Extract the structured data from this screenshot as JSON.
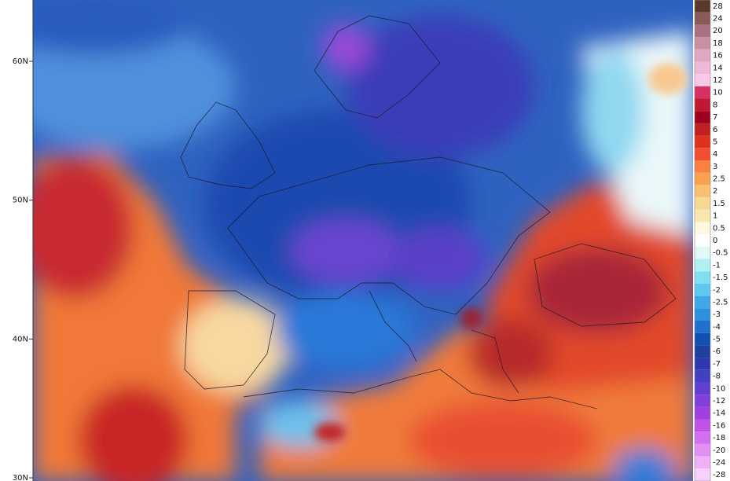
{
  "map": {
    "latitude_labels": [
      {
        "value": 60,
        "label": "60N"
      },
      {
        "value": 50,
        "label": "50N"
      },
      {
        "value": 40,
        "label": "40N"
      },
      {
        "value": 30,
        "label": "30N"
      }
    ]
  },
  "legend": {
    "levels": [
      28,
      24,
      20,
      18,
      16,
      14,
      12,
      10,
      8,
      7,
      6,
      5,
      4,
      3,
      2.5,
      2,
      1.5,
      1,
      0.5,
      0,
      -0.5,
      -1,
      -1.5,
      -2,
      -2.5,
      -3,
      -4,
      -5,
      -6,
      -7,
      -8,
      -10,
      -12,
      -14,
      -16,
      -18,
      -20,
      -24,
      -28
    ],
    "colors": [
      "#5a3a2a",
      "#8a5a5a",
      "#a87080",
      "#c890a0",
      "#e0a8c0",
      "#f0b8d8",
      "#f8c8e8",
      "#d83060",
      "#c01830",
      "#a00020",
      "#c02020",
      "#e03020",
      "#f05030",
      "#f88040",
      "#f8a050",
      "#f8c070",
      "#f8d890",
      "#f8e8b0",
      "#fff8e0",
      "#ffffff",
      "#e0f8f8",
      "#b0f0f0",
      "#80e0f0",
      "#60c8f0",
      "#40a8e8",
      "#3090e0",
      "#2070d0",
      "#1050b0",
      "#2040a0",
      "#3038b0",
      "#4040c0",
      "#6040d0",
      "#8040d8",
      "#a040e0",
      "#c050e8",
      "#d070f0",
      "#e090f0",
      "#f0b0f8",
      "#f8d0ff"
    ]
  }
}
